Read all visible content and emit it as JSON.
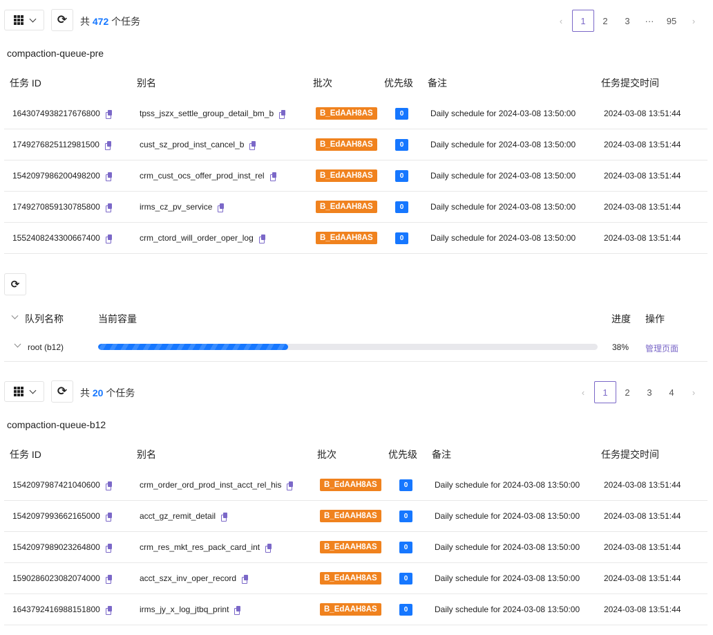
{
  "accent_color": "#7b68c8",
  "sections": [
    {
      "total_prefix": "共",
      "total": "472",
      "total_suffix": "个任务",
      "pages": [
        "1",
        "2",
        "3",
        "···",
        "95"
      ],
      "current_page": "1",
      "queue_title": "compaction-queue-pre",
      "columns": [
        "任务 ID",
        "别名",
        "批次",
        "优先级",
        "备注",
        "任务提交时间"
      ],
      "rows": [
        {
          "id": "1643074938217676800",
          "alias": "tpss_jszx_settle_group_detail_bm_b",
          "batch": "B_EdAAH8AS",
          "priority": "0",
          "note": "Daily schedule for 2024-03-08 13:50:00",
          "time": "2024-03-08 13:51:44"
        },
        {
          "id": "1749276825112981500",
          "alias": "cust_sz_prod_inst_cancel_b",
          "batch": "B_EdAAH8AS",
          "priority": "0",
          "note": "Daily schedule for 2024-03-08 13:50:00",
          "time": "2024-03-08 13:51:44"
        },
        {
          "id": "1542097986200498200",
          "alias": "crm_cust_ocs_offer_prod_inst_rel",
          "batch": "B_EdAAH8AS",
          "priority": "0",
          "note": "Daily schedule for 2024-03-08 13:50:00",
          "time": "2024-03-08 13:51:44"
        },
        {
          "id": "1749270859130785800",
          "alias": "irms_cz_pv_service",
          "batch": "B_EdAAH8AS",
          "priority": "0",
          "note": "Daily schedule for 2024-03-08 13:50:00",
          "time": "2024-03-08 13:51:44"
        },
        {
          "id": "1552408243300667400",
          "alias": "crm_ctord_will_order_oper_log",
          "batch": "B_EdAAH8AS",
          "priority": "0",
          "note": "Daily schedule for 2024-03-08 13:50:00",
          "time": "2024-03-08 13:51:44"
        }
      ]
    },
    {
      "total_prefix": "共",
      "total": "20",
      "total_suffix": "个任务",
      "pages": [
        "1",
        "2",
        "3",
        "4"
      ],
      "current_page": "1",
      "queue_title": "compaction-queue-b12",
      "columns": [
        "任务 ID",
        "别名",
        "批次",
        "优先级",
        "备注",
        "任务提交时间"
      ],
      "rows": [
        {
          "id": "1542097987421040600",
          "alias": "crm_order_ord_prod_inst_acct_rel_his",
          "batch": "B_EdAAH8AS",
          "priority": "0",
          "note": "Daily schedule for 2024-03-08 13:50:00",
          "time": "2024-03-08 13:51:44"
        },
        {
          "id": "1542097993662165000",
          "alias": "acct_gz_remit_detail",
          "batch": "B_EdAAH8AS",
          "priority": "0",
          "note": "Daily schedule for 2024-03-08 13:50:00",
          "time": "2024-03-08 13:51:44"
        },
        {
          "id": "1542097989023264800",
          "alias": "crm_res_mkt_res_pack_card_int",
          "batch": "B_EdAAH8AS",
          "priority": "0",
          "note": "Daily schedule for 2024-03-08 13:50:00",
          "time": "2024-03-08 13:51:44"
        },
        {
          "id": "1590286023082074000",
          "alias": "acct_szx_inv_oper_record",
          "batch": "B_EdAAH8AS",
          "priority": "0",
          "note": "Daily schedule for 2024-03-08 13:50:00",
          "time": "2024-03-08 13:51:44"
        },
        {
          "id": "1643792416988151800",
          "alias": "irms_jy_x_log_jtbq_print",
          "batch": "B_EdAAH8AS",
          "priority": "0",
          "note": "Daily schedule for 2024-03-08 13:50:00",
          "time": "2024-03-08 13:51:44"
        }
      ]
    }
  ],
  "queue": {
    "columns": {
      "name": "队列名称",
      "capacity": "当前容量",
      "progress": "进度",
      "action": "操作"
    },
    "row": {
      "name": "root (b12)",
      "progress_percent": 38,
      "progress_label": "38%",
      "action": "管理页面"
    }
  }
}
